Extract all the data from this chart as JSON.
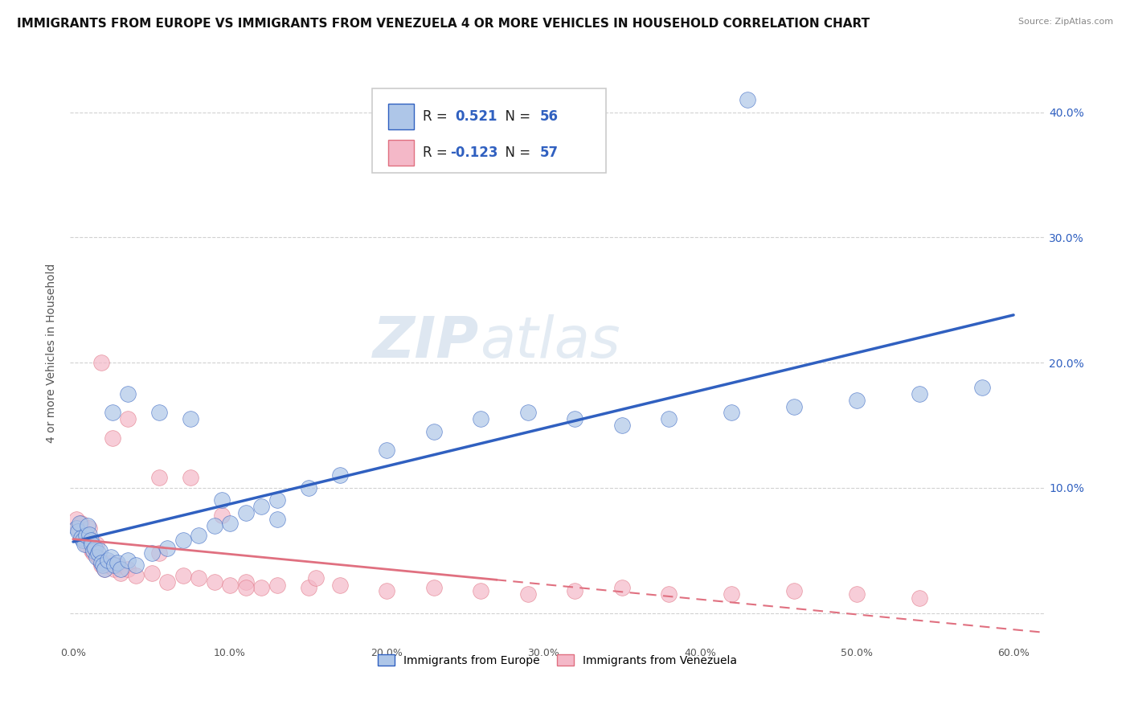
{
  "title": "IMMIGRANTS FROM EUROPE VS IMMIGRANTS FROM VENEZUELA 4 OR MORE VEHICLES IN HOUSEHOLD CORRELATION CHART",
  "source": "Source: ZipAtlas.com",
  "ylabel": "4 or more Vehicles in Household",
  "legend_label_1": "Immigrants from Europe",
  "legend_label_2": "Immigrants from Venezuela",
  "R1": 0.521,
  "N1": 56,
  "R2": -0.123,
  "N2": 57,
  "xlim": [
    -0.002,
    0.62
  ],
  "ylim": [
    -0.025,
    0.44
  ],
  "xticks": [
    0.0,
    0.1,
    0.2,
    0.3,
    0.4,
    0.5,
    0.6
  ],
  "yticks": [
    0.0,
    0.1,
    0.2,
    0.3,
    0.4
  ],
  "color_europe": "#aec6e8",
  "color_venezuela": "#f4b8c8",
  "line_color_europe": "#3060c0",
  "line_color_venezuela": "#e07080",
  "watermark_zip": "ZIP",
  "watermark_atlas": "atlas",
  "background_color": "#ffffff",
  "grid_color": "#cccccc",
  "title_fontsize": 11,
  "axis_label_fontsize": 10,
  "tick_fontsize": 9,
  "europe_x": [
    0.002,
    0.003,
    0.004,
    0.005,
    0.006,
    0.007,
    0.008,
    0.009,
    0.01,
    0.011,
    0.012,
    0.013,
    0.014,
    0.015,
    0.016,
    0.017,
    0.018,
    0.019,
    0.02,
    0.022,
    0.024,
    0.026,
    0.028,
    0.03,
    0.035,
    0.04,
    0.05,
    0.06,
    0.07,
    0.08,
    0.09,
    0.1,
    0.11,
    0.12,
    0.13,
    0.15,
    0.17,
    0.2,
    0.23,
    0.26,
    0.29,
    0.32,
    0.35,
    0.38,
    0.42,
    0.46,
    0.5,
    0.54,
    0.58,
    0.025,
    0.035,
    0.055,
    0.075,
    0.095,
    0.13,
    0.43
  ],
  "europe_y": [
    0.068,
    0.065,
    0.072,
    0.06,
    0.058,
    0.055,
    0.062,
    0.07,
    0.063,
    0.058,
    0.055,
    0.05,
    0.052,
    0.045,
    0.048,
    0.05,
    0.04,
    0.038,
    0.035,
    0.042,
    0.045,
    0.038,
    0.04,
    0.035,
    0.042,
    0.038,
    0.048,
    0.052,
    0.058,
    0.062,
    0.07,
    0.072,
    0.08,
    0.085,
    0.09,
    0.1,
    0.11,
    0.13,
    0.145,
    0.155,
    0.16,
    0.155,
    0.15,
    0.155,
    0.16,
    0.165,
    0.17,
    0.175,
    0.18,
    0.16,
    0.175,
    0.16,
    0.155,
    0.09,
    0.075,
    0.41
  ],
  "venezuela_x": [
    0.002,
    0.003,
    0.004,
    0.005,
    0.006,
    0.007,
    0.008,
    0.009,
    0.01,
    0.011,
    0.012,
    0.013,
    0.014,
    0.015,
    0.016,
    0.017,
    0.018,
    0.019,
    0.02,
    0.022,
    0.024,
    0.026,
    0.028,
    0.03,
    0.035,
    0.04,
    0.05,
    0.06,
    0.07,
    0.08,
    0.09,
    0.1,
    0.11,
    0.12,
    0.13,
    0.15,
    0.17,
    0.2,
    0.23,
    0.26,
    0.29,
    0.32,
    0.35,
    0.38,
    0.42,
    0.46,
    0.5,
    0.54,
    0.035,
    0.025,
    0.055,
    0.018,
    0.075,
    0.095,
    0.155,
    0.055,
    0.11
  ],
  "venezuela_y": [
    0.075,
    0.068,
    0.065,
    0.072,
    0.06,
    0.058,
    0.055,
    0.062,
    0.068,
    0.055,
    0.05,
    0.048,
    0.052,
    0.055,
    0.045,
    0.042,
    0.038,
    0.04,
    0.035,
    0.038,
    0.04,
    0.035,
    0.038,
    0.032,
    0.035,
    0.03,
    0.032,
    0.025,
    0.03,
    0.028,
    0.025,
    0.022,
    0.025,
    0.02,
    0.022,
    0.02,
    0.022,
    0.018,
    0.02,
    0.018,
    0.015,
    0.018,
    0.02,
    0.015,
    0.015,
    0.018,
    0.015,
    0.012,
    0.155,
    0.14,
    0.108,
    0.2,
    0.108,
    0.078,
    0.028,
    0.048,
    0.02
  ]
}
